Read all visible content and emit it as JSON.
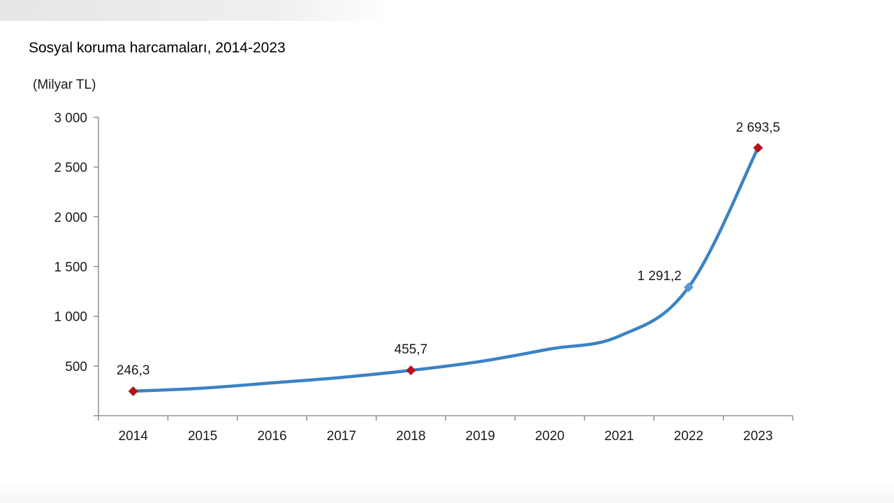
{
  "chart_data": {
    "type": "line",
    "title": "Sosyal koruma harcamaları, 2014-2023",
    "unit_label": "(Milyar TL)",
    "xlabel": "",
    "ylabel": "",
    "categories": [
      "2014",
      "2015",
      "2016",
      "2017",
      "2018",
      "2019",
      "2020",
      "2021",
      "2022",
      "2023"
    ],
    "series": [
      {
        "values": [
          246.3,
          277,
          330,
          385,
          455.7,
          545,
          670,
          800,
          1291.2,
          2693.5
        ],
        "color": "#3a83c4"
      }
    ],
    "ylim": [
      0,
      3000
    ],
    "yticks": [
      {
        "value": 500,
        "label": "500"
      },
      {
        "value": 1000,
        "label": "1 000"
      },
      {
        "value": 1500,
        "label": "1 500"
      },
      {
        "value": 2000,
        "label": "2 000"
      },
      {
        "value": 2500,
        "label": "2 500"
      },
      {
        "value": 3000,
        "label": "3 000"
      }
    ],
    "data_labels": [
      {
        "index": 0,
        "label": "246,3"
      },
      {
        "index": 4,
        "label": "455,7"
      },
      {
        "index": 8,
        "label": "1 291,2"
      },
      {
        "index": 9,
        "label": "2 693,5"
      }
    ],
    "highlight_markers": [
      {
        "index": 0,
        "color": "#b5121b"
      },
      {
        "index": 4,
        "color": "#b5121b"
      },
      {
        "index": 8,
        "color": "#5b9bd5"
      },
      {
        "index": 9,
        "color": "#b5121b"
      }
    ],
    "grid": false,
    "legend": "none",
    "axis_color": "#808080"
  }
}
